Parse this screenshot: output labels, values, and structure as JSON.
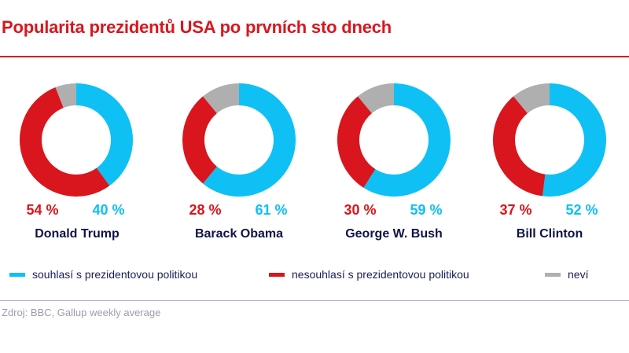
{
  "title": "Popularita prezidentů USA po prvních sto dnech",
  "colors": {
    "approve": "#0fc0f5",
    "disapprove": "#d9161d",
    "unknown": "#afafaf"
  },
  "chart_data": {
    "type": "donut",
    "title": "Popularita prezidentů USA po prvních sto dnech",
    "categories": [
      "Donald Trump",
      "Barack Obama",
      "George W. Bush",
      "Bill Clinton"
    ],
    "series": [
      {
        "name": "souhlasí s prezidentovou politikou",
        "values": [
          40,
          61,
          59,
          52
        ]
      },
      {
        "name": "nesouhlasí s prezidentovou politikou",
        "values": [
          54,
          28,
          30,
          37
        ]
      },
      {
        "name": "neví",
        "values": [
          6,
          11,
          11,
          11
        ]
      }
    ],
    "data_labels": {
      "approve": [
        "40 %",
        "61 %",
        "59 %",
        "52 %"
      ],
      "disapprove": [
        "54 %",
        "28 %",
        "30 %",
        "37 %"
      ]
    },
    "legend": "bottom"
  },
  "source": "Zdroj: BBC, Gallup weekly average"
}
